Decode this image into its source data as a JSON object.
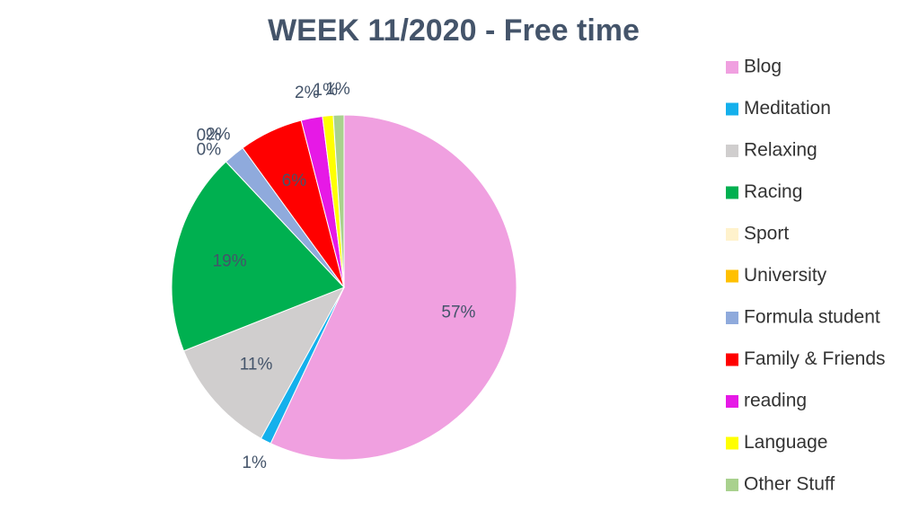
{
  "chart_data": {
    "type": "pie",
    "title": "WEEK 11/2020 - Free time",
    "categories": [
      "Blog",
      "Meditation",
      "Relaxing",
      "Racing",
      "Sport",
      "University",
      "Formula student",
      "Family & Friends",
      "reading",
      "Language",
      "Other Stuff"
    ],
    "values": [
      57,
      1,
      11,
      19,
      0,
      0,
      2,
      6,
      2,
      1,
      1
    ],
    "value_labels": [
      "57%",
      "1%",
      "11%",
      "19%",
      "0%",
      "0%",
      "2%",
      "6%",
      "2%",
      "1%",
      "1%"
    ],
    "colors": [
      "#f0a0e0",
      "#14b0ec",
      "#d0cece",
      "#00b050",
      "#fff2cc",
      "#ffc000",
      "#8faadc",
      "#ff0000",
      "#e619e6",
      "#ffff00",
      "#a9d18e"
    ],
    "legend": "right"
  }
}
